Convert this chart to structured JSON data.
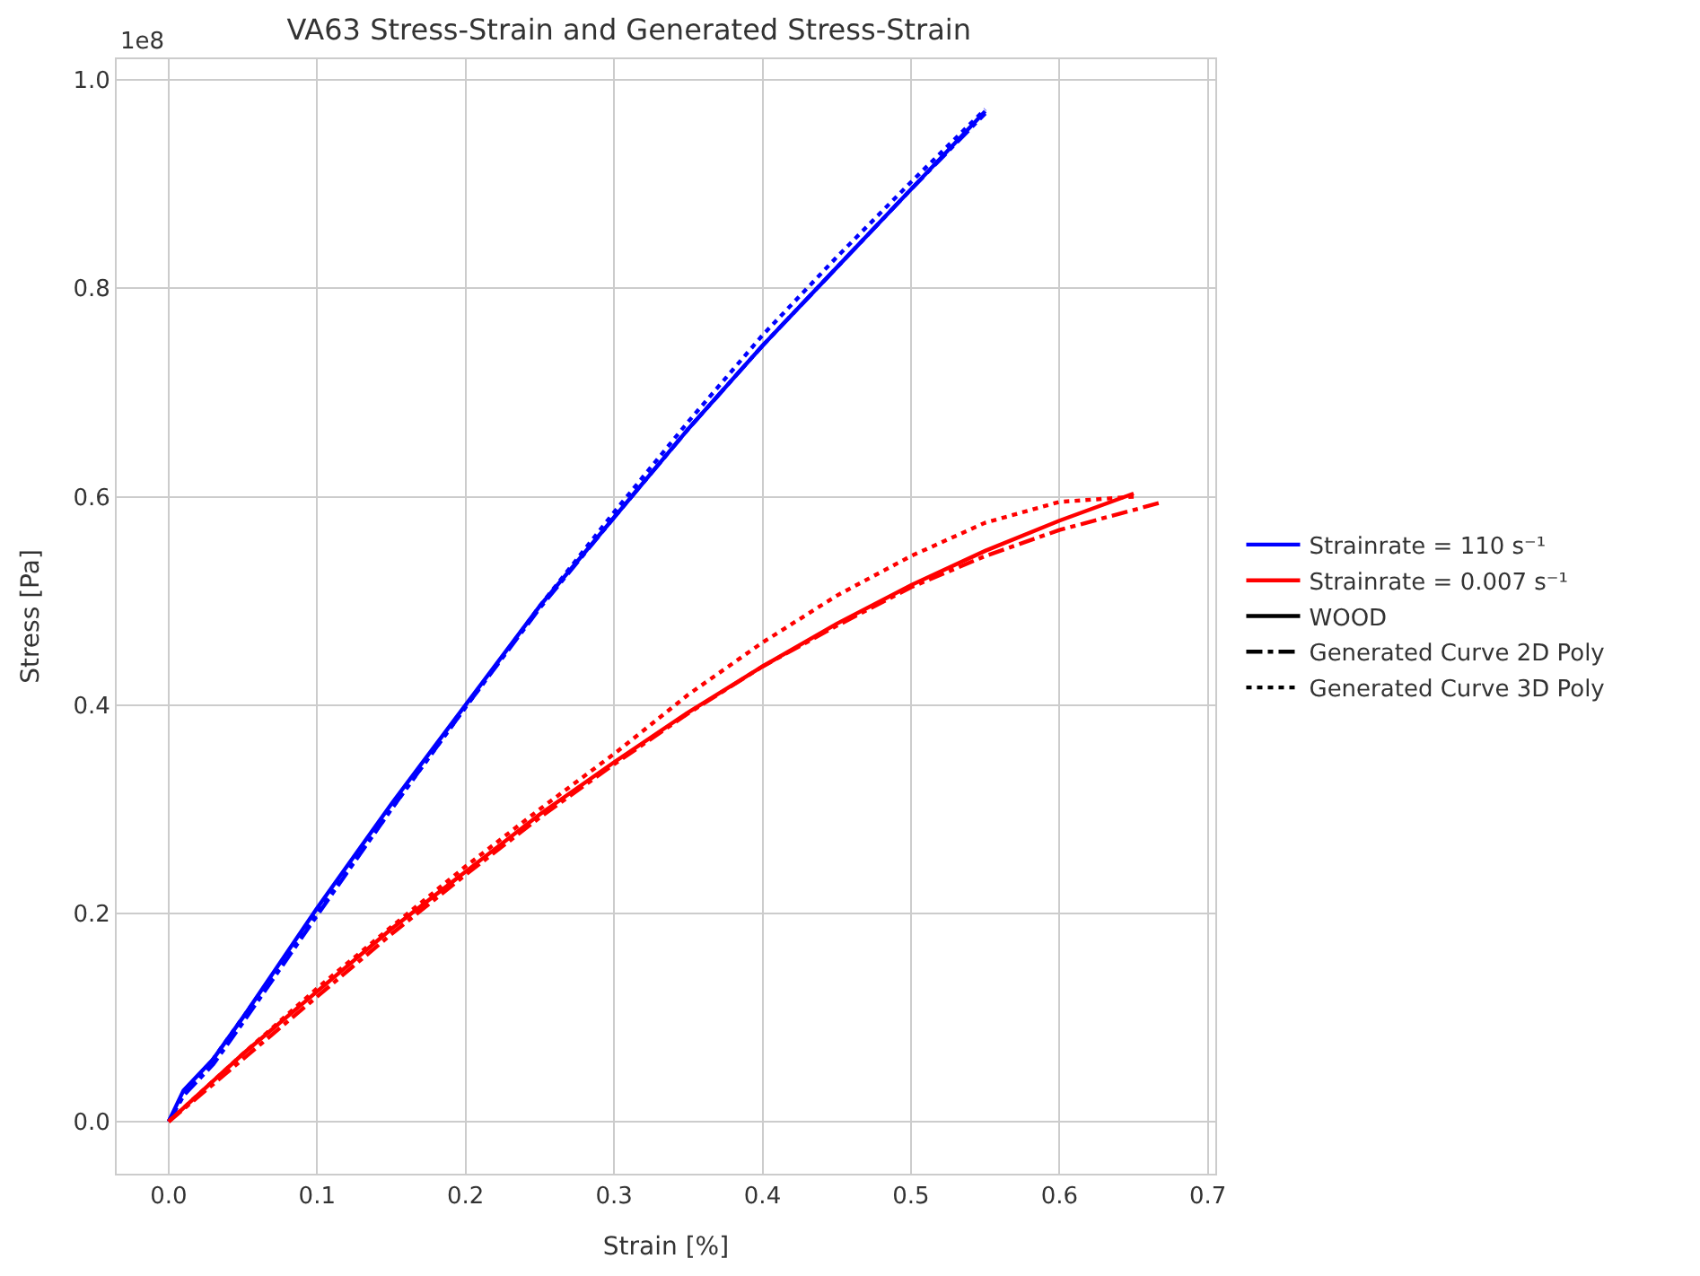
{
  "chart_data": {
    "type": "line",
    "title": "VA63 Stress-Strain and Generated Stress-Strain",
    "xlabel": "Strain [%]",
    "ylabel": "Stress [Pa]",
    "annotations": [
      "1e8"
    ],
    "xlim": [
      -0.035,
      0.705
    ],
    "xticks": [
      {
        "value": 0,
        "label": "0.0"
      },
      0.1,
      0.2,
      0.3,
      0.4,
      0.5,
      0.6,
      0.7
    ],
    "ylim": [
      -0.05,
      1.02
    ],
    "yticks": [
      {
        "value": 0,
        "label": "0.0"
      },
      0.2,
      0.4,
      0.6,
      0.8,
      {
        "value": 1,
        "label": "1.0"
      }
    ],
    "grid": true,
    "legend": "right",
    "series": [
      {
        "color": "#0000ff",
        "line_style": "solid",
        "x": [
          0,
          0.01,
          0.03,
          0.05,
          0.1,
          0.15,
          0.2,
          0.25,
          0.3,
          0.35,
          0.4,
          0.45,
          0.5,
          0.55
        ],
        "values": [
          0,
          0.03,
          0.06,
          0.1,
          0.205,
          0.305,
          0.4,
          0.495,
          0.58,
          0.665,
          0.745,
          0.82,
          0.895,
          0.97
        ]
      },
      {
        "color": "#0000ff",
        "line_style": "dashdot",
        "x": [
          0,
          0.01,
          0.03,
          0.05,
          0.1,
          0.15,
          0.2,
          0.25,
          0.3,
          0.35,
          0.4,
          0.45,
          0.5,
          0.55
        ],
        "values": [
          0,
          0.025,
          0.055,
          0.095,
          0.198,
          0.3,
          0.398,
          0.493,
          0.58,
          0.665,
          0.745,
          0.82,
          0.895,
          0.968
        ]
      },
      {
        "color": "#0000ff",
        "line_style": "dotted",
        "x": [
          0,
          0.01,
          0.03,
          0.05,
          0.1,
          0.15,
          0.2,
          0.25,
          0.3,
          0.35,
          0.4,
          0.45,
          0.5,
          0.55
        ],
        "values": [
          0,
          0.025,
          0.06,
          0.1,
          0.2,
          0.3,
          0.398,
          0.495,
          0.585,
          0.672,
          0.755,
          0.83,
          0.902,
          0.972
        ]
      },
      {
        "color": "#ff0000",
        "line_style": "solid",
        "x": [
          0,
          0.05,
          0.1,
          0.15,
          0.2,
          0.25,
          0.3,
          0.35,
          0.4,
          0.45,
          0.5,
          0.55,
          0.6,
          0.65
        ],
        "values": [
          0,
          0.065,
          0.125,
          0.185,
          0.24,
          0.295,
          0.345,
          0.393,
          0.437,
          0.478,
          0.515,
          0.548,
          0.577,
          0.603
        ]
      },
      {
        "color": "#ff0000",
        "line_style": "dashdot",
        "x": [
          0,
          0.05,
          0.1,
          0.15,
          0.2,
          0.25,
          0.3,
          0.35,
          0.4,
          0.45,
          0.5,
          0.55,
          0.6,
          0.67
        ],
        "values": [
          0,
          0.06,
          0.12,
          0.18,
          0.237,
          0.292,
          0.343,
          0.392,
          0.437,
          0.476,
          0.513,
          0.543,
          0.568,
          0.595
        ]
      },
      {
        "color": "#ff0000",
        "line_style": "dotted",
        "x": [
          0,
          0.05,
          0.1,
          0.15,
          0.2,
          0.25,
          0.3,
          0.35,
          0.4,
          0.45,
          0.5,
          0.55,
          0.6,
          0.65
        ],
        "values": [
          0,
          0.065,
          0.128,
          0.187,
          0.245,
          0.3,
          0.353,
          0.41,
          0.46,
          0.505,
          0.543,
          0.575,
          0.595,
          0.6
        ]
      },
      {
        "name": "Strainrate = 110 s⁻¹",
        "color": "#0000ff",
        "line_style": "solid"
      },
      {
        "name": "Strainrate = 0.007 s⁻¹",
        "color": "#ff0000",
        "line_style": "solid"
      },
      {
        "name": "WOOD",
        "color": "#000000",
        "line_style": "solid"
      },
      {
        "name": "Generated Curve 2D Poly",
        "color": "#000000",
        "line_style": "dashdot"
      },
      {
        "name": "Generated Curve 3D Poly",
        "color": "#000000",
        "line_style": "dotted"
      }
    ]
  }
}
